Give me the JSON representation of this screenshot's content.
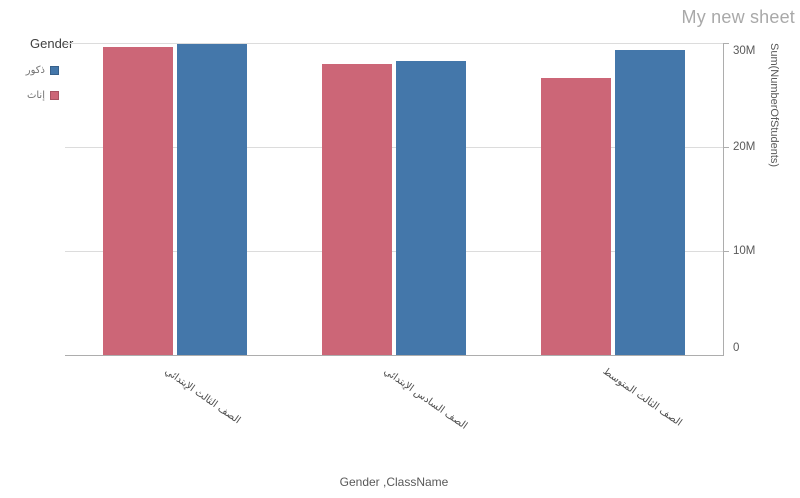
{
  "sheet": {
    "title": "My new sheet"
  },
  "legend": {
    "title": "Gender",
    "items": [
      {
        "label": "ذكور",
        "color": "#4477aa"
      },
      {
        "label": "إناث",
        "color": "#cc6677"
      }
    ]
  },
  "chart_data": {
    "type": "bar",
    "title": "",
    "categories": [
      "الصف الثالث الإبتدائي",
      "الصف السادس الإبتدائي",
      "الصف الثالث المتوسط"
    ],
    "series": [
      {
        "name": "ذكور",
        "color": "#4477aa",
        "values": [
          29.9,
          28.3,
          29.3
        ]
      },
      {
        "name": "إناث",
        "color": "#cc6677",
        "values": [
          29.6,
          28.0,
          26.6
        ]
      }
    ],
    "values_unit": "M",
    "xlabel": "Gender ,ClassName",
    "ylabel": "Sum(NumberOfStudents)",
    "ylim": [
      0,
      30
    ],
    "y_ticks": [
      {
        "value": 0,
        "label": "0"
      },
      {
        "value": 10,
        "label": "10M"
      },
      {
        "value": 20,
        "label": "20M"
      },
      {
        "value": 30,
        "label": "30M"
      }
    ],
    "legend_position": "top-left",
    "grid": "horizontal"
  }
}
